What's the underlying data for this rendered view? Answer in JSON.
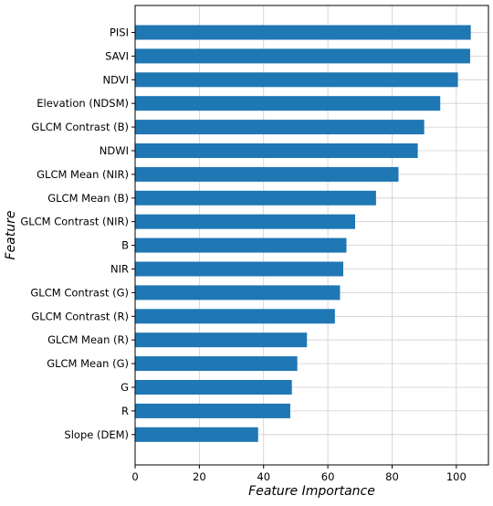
{
  "chart_data": {
    "type": "bar",
    "orientation": "horizontal",
    "categories": [
      "PISI",
      "SAVI",
      "NDVI",
      "Elevation (NDSM)",
      "GLCM Contrast (B)",
      "NDWI",
      "GLCM Mean (NIR)",
      "GLCM Mean (B)",
      "GLCM Contrast (NIR)",
      "B",
      "NIR",
      "GLCM Contrast (G)",
      "GLCM Contrast (R)",
      "GLCM Mean (R)",
      "GLCM Mean (G)",
      "G",
      "R",
      "Slope (DEM)"
    ],
    "values": [
      104.5,
      104.3,
      100.5,
      95.0,
      90.0,
      88.0,
      82.0,
      75.0,
      68.5,
      65.8,
      64.8,
      63.8,
      62.2,
      53.5,
      50.5,
      48.8,
      48.3,
      38.3
    ],
    "xlabel": "Feature Importance",
    "ylabel": "Feature",
    "xlim": [
      0,
      110
    ],
    "xticks": [
      "0",
      "20",
      "40",
      "60",
      "80",
      "100"
    ],
    "grid": true,
    "bar_color": "#1f77b4"
  }
}
